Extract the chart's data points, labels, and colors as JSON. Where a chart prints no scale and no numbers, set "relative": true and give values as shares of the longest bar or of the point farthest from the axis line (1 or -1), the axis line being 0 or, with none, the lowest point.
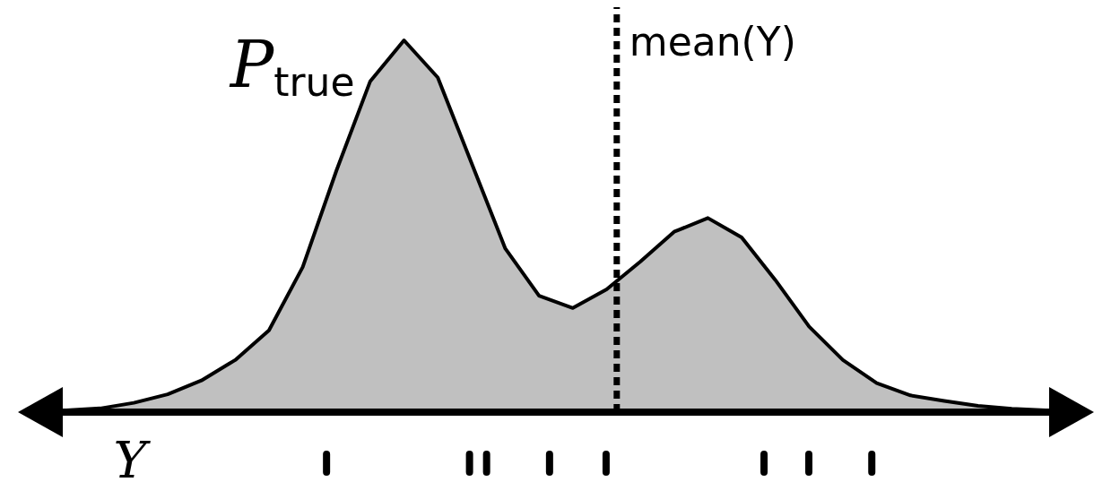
{
  "chart_data": {
    "type": "area",
    "relative": true,
    "tick_labels": false,
    "xlabel": "Y",
    "categories": [
      null,
      null,
      null,
      null,
      null,
      null,
      null,
      null,
      null,
      null,
      null,
      null,
      null,
      null,
      null,
      null,
      null,
      null,
      null,
      null,
      null,
      null,
      null,
      null,
      null,
      null,
      null,
      null,
      null,
      null
    ],
    "series": [
      {
        "name": "P$_{true}$",
        "color": "#c0c0c0",
        "values": [
          0.005,
          0.01,
          0.025,
          0.048,
          0.085,
          0.14,
          0.22,
          0.39,
          0.65,
          0.89,
          1,
          0.9,
          0.67,
          0.44,
          0.313,
          0.28,
          0.33,
          0.405,
          0.485,
          0.522,
          0.47,
          0.355,
          0.23,
          0.14,
          0.078,
          0.045,
          0.03,
          0.017,
          0.009,
          0.005
        ]
      }
    ],
    "annotations": [
      "mean(Y)"
    ]
  }
}
